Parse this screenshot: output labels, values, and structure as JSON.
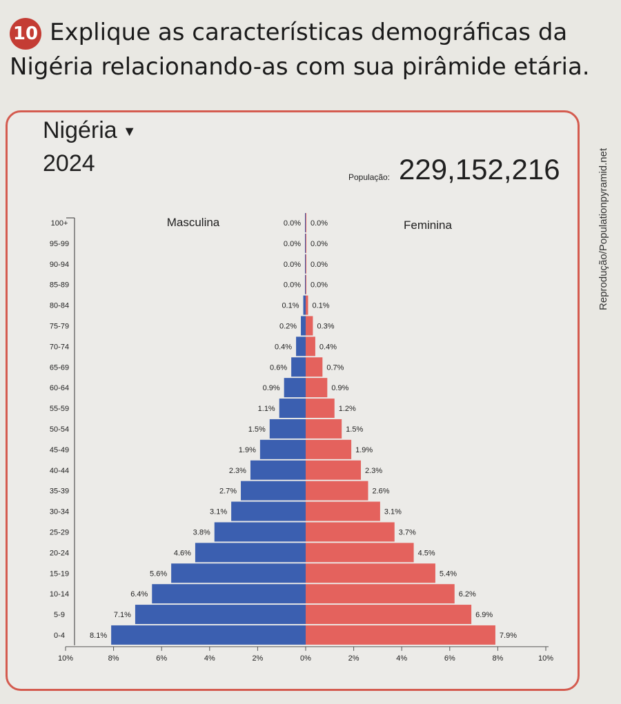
{
  "question": {
    "number": "10",
    "text": "Explique as características demográficas da Nigéria relacionando-as com sua pirâmide etária."
  },
  "card": {
    "country": "Nigéria",
    "year": "2024",
    "population_label": "População:",
    "population_value": "229,152,216",
    "credit": "Reprodução/Populationpyramid.net"
  },
  "colors": {
    "male": "#3b5fb0",
    "female": "#e4625d",
    "border": "#d45b4f",
    "badge": "#c43c34"
  },
  "icons": {
    "country_dropdown": "caret-down-icon"
  },
  "chart_data": {
    "type": "bar",
    "orientation": "horizontal-population-pyramid",
    "categories": [
      "100+",
      "95-99",
      "90-94",
      "85-89",
      "80-84",
      "75-79",
      "70-74",
      "65-69",
      "60-64",
      "55-59",
      "50-54",
      "45-49",
      "40-44",
      "35-39",
      "30-34",
      "25-29",
      "20-24",
      "15-19",
      "10-14",
      "5-9",
      "0-4"
    ],
    "series": [
      {
        "name": "Masculina",
        "values": [
          0.0,
          0.0,
          0.0,
          0.0,
          0.1,
          0.2,
          0.4,
          0.6,
          0.9,
          1.1,
          1.5,
          1.9,
          2.3,
          2.7,
          3.1,
          3.8,
          4.6,
          5.6,
          6.4,
          7.1,
          8.1
        ],
        "labels": [
          "0.0%",
          "0.0%",
          "0.0%",
          "0.0%",
          "0.1%",
          "0.2%",
          "0.4%",
          "0.6%",
          "0.9%",
          "1.1%",
          "1.5%",
          "1.9%",
          "2.3%",
          "2.7%",
          "3.1%",
          "3.8%",
          "4.6%",
          "5.6%",
          "6.4%",
          "7.1%",
          "8.1%"
        ]
      },
      {
        "name": "Feminina",
        "values": [
          0.0,
          0.0,
          0.0,
          0.0,
          0.1,
          0.3,
          0.4,
          0.7,
          0.9,
          1.2,
          1.5,
          1.9,
          2.3,
          2.6,
          3.1,
          3.7,
          4.5,
          5.4,
          6.2,
          6.9,
          7.9
        ],
        "labels": [
          "0.0%",
          "0.0%",
          "0.0%",
          "0.0%",
          "0.1%",
          "0.3%",
          "0.4%",
          "0.7%",
          "0.9%",
          "1.2%",
          "1.5%",
          "1.9%",
          "2.3%",
          "2.6%",
          "3.1%",
          "3.7%",
          "4.5%",
          "5.4%",
          "6.2%",
          "6.9%",
          "7.9%"
        ]
      }
    ],
    "x_ticks": [
      "10%",
      "8%",
      "6%",
      "4%",
      "2%",
      "0%",
      "2%",
      "4%",
      "6%",
      "8%",
      "10%"
    ],
    "xlim": [
      -10,
      10
    ],
    "grid": false
  }
}
